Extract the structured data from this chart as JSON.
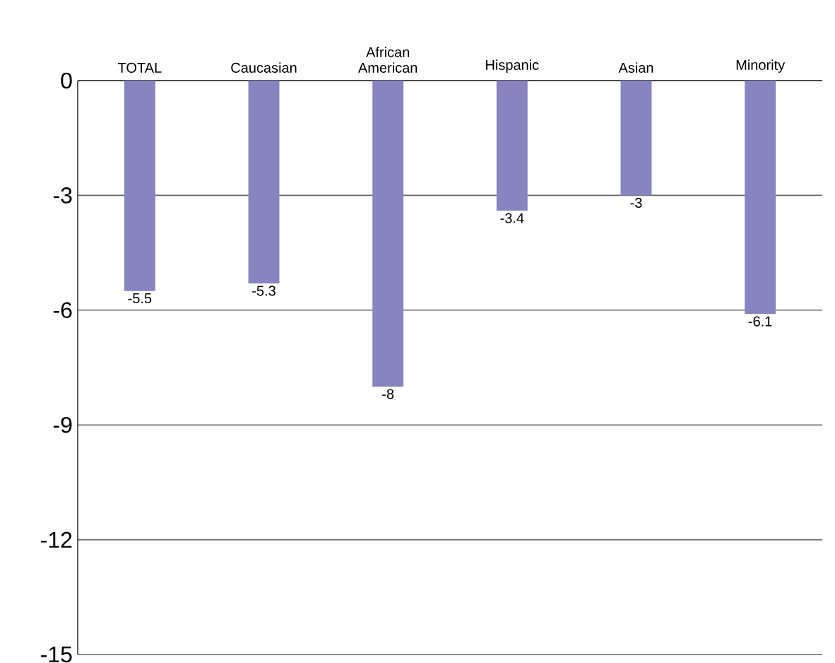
{
  "chart_data": {
    "type": "bar",
    "categories": [
      "TOTAL",
      "Caucasian",
      "African American",
      "Hispanic",
      "Asian",
      "Minority"
    ],
    "values": [
      -5.5,
      -5.3,
      -8,
      -3.4,
      -3,
      -6.1
    ],
    "color": "#8884c0",
    "data_labels": true,
    "grid": "y",
    "ylim": [
      -15,
      0
    ],
    "yticks": [
      0,
      -3,
      -6,
      -9,
      -12,
      -15
    ]
  }
}
